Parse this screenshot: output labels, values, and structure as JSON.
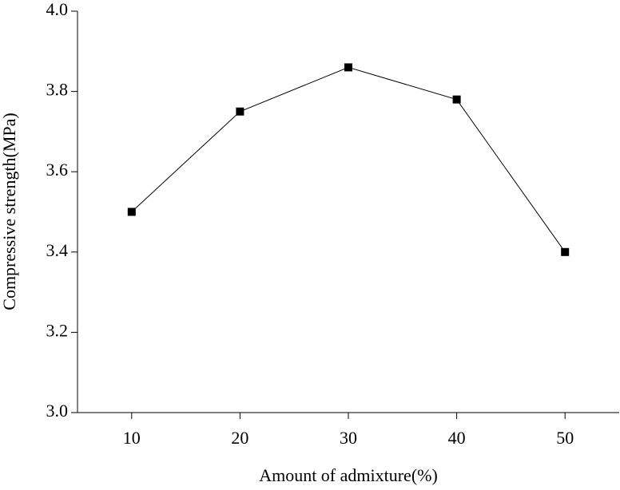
{
  "chart_data": {
    "type": "line",
    "x_label": "Amount of admixture(%)",
    "y_label": "Compressive strength(MPa)",
    "x": [
      10,
      20,
      30,
      40,
      50
    ],
    "series": [
      {
        "name": "Compressive strength",
        "color": "#000000",
        "values": [
          3.5,
          3.75,
          3.86,
          3.78,
          3.4
        ]
      }
    ],
    "xlim": [
      5,
      55
    ],
    "xticks": [
      10,
      20,
      30,
      40,
      50
    ],
    "ylim": [
      3.0,
      4.0
    ],
    "yticks": [
      {
        "value": 3.0,
        "label": "3.0"
      },
      {
        "value": 3.2,
        "label": "3.2"
      },
      {
        "value": 3.4,
        "label": "3.4"
      },
      {
        "value": 3.6,
        "label": "3.6"
      },
      {
        "value": 3.8,
        "label": "3.8"
      },
      {
        "value": 4.0,
        "label": "4.0"
      }
    ],
    "marker": "square",
    "grid": false
  }
}
